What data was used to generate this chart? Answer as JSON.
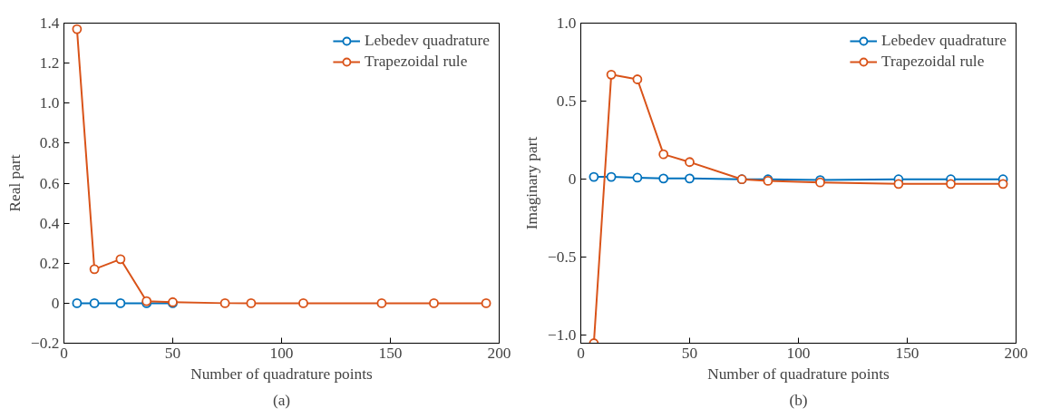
{
  "chart_data": [
    {
      "type": "line",
      "xlabel": "Number of quadrature points",
      "ylabel": "Real part",
      "annotations": [
        "(a)"
      ],
      "x": [
        6,
        14,
        26,
        38,
        50,
        74,
        86,
        110,
        146,
        170,
        194
      ],
      "xlim": [
        0,
        200
      ],
      "xticks": [
        0,
        50,
        100,
        150,
        200
      ],
      "ylim": [
        -0.2,
        1.4
      ],
      "yticks": [
        {
          "value": -0.2,
          "label": "−0.2"
        },
        0,
        0.2,
        0.4,
        0.6,
        0.8,
        {
          "value": 1.0,
          "label": "1.0"
        },
        1.2,
        1.4
      ],
      "grid": false,
      "legend": "top right",
      "marker": "circle",
      "line_style": "solid",
      "series": [
        {
          "name": "Lebedev quadrature",
          "color": "#0072bd",
          "values": [
            0,
            0,
            0,
            0,
            0,
            null,
            null,
            null,
            null,
            null,
            null
          ]
        },
        {
          "name": "Trapezoidal rule",
          "color": "#d95319",
          "values": [
            1.37,
            0.17,
            0.22,
            0.01,
            0.005,
            0,
            0,
            0,
            0,
            0,
            0
          ]
        }
      ]
    },
    {
      "type": "line",
      "xlabel": "Number of quadrature points",
      "ylabel": "Imaginary part",
      "annotations": [
        "(b)"
      ],
      "x": [
        6,
        14,
        26,
        38,
        50,
        74,
        86,
        110,
        146,
        170,
        194
      ],
      "xlim": [
        0,
        200
      ],
      "xticks": [
        0,
        50,
        100,
        150,
        200
      ],
      "ylim": [
        -1.05,
        1.0
      ],
      "yticks": [
        {
          "value": -1.0,
          "label": "−1.0"
        },
        {
          "value": -0.5,
          "label": "−0.5"
        },
        0,
        0.5,
        {
          "value": 1.0,
          "label": "1.0"
        }
      ],
      "grid": false,
      "legend": "top right",
      "marker": "circle",
      "line_style": "solid",
      "series": [
        {
          "name": "Lebedev quadrature",
          "color": "#0072bd",
          "values": [
            0.015,
            0.015,
            0.01,
            0.005,
            0.005,
            0,
            0,
            -0.005,
            0,
            0,
            0
          ]
        },
        {
          "name": "Trapezoidal rule",
          "color": "#d95319",
          "values": [
            -1.05,
            0.67,
            0.64,
            0.16,
            0.11,
            0,
            -0.01,
            -0.02,
            -0.03,
            -0.03,
            -0.03
          ]
        }
      ]
    }
  ]
}
